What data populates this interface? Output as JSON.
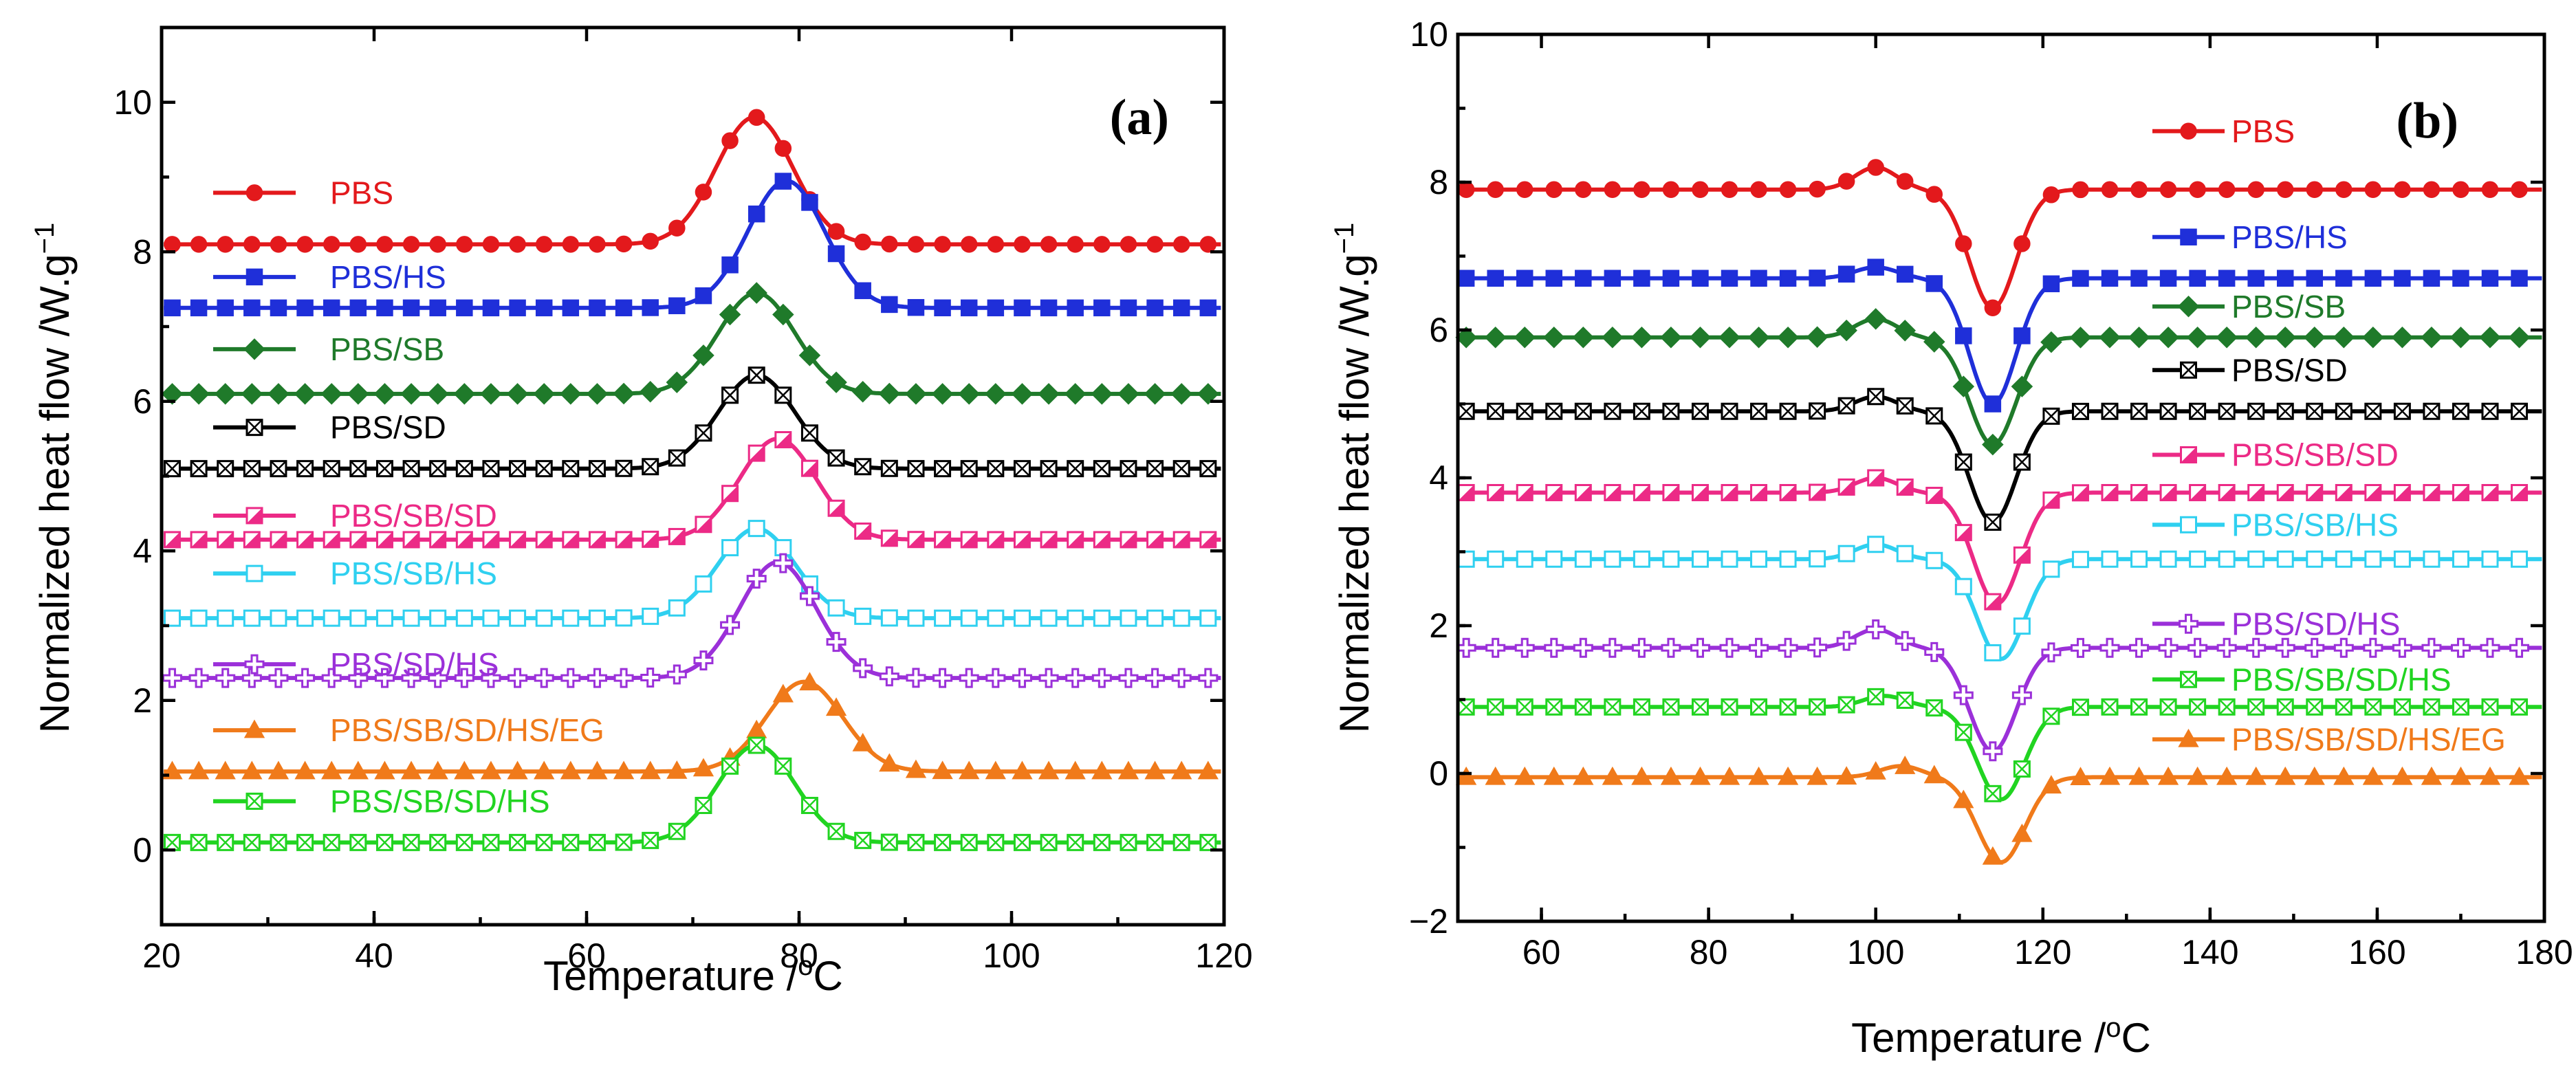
{
  "chart_data": [
    {
      "type": "line",
      "panel_label": "(a)",
      "xlabel": "Temperature /",
      "xlabel_sup": "o",
      "xlabel_suffix": "C",
      "ylabel": "Normalized heat flow /W.g",
      "ylabel_sup": "−1",
      "xlim": [
        20,
        120
      ],
      "ylim": [
        -1,
        11
      ],
      "xticks": [
        20,
        40,
        60,
        80,
        100,
        120
      ],
      "yticks": [
        0,
        2,
        4,
        6,
        8,
        10
      ],
      "legend_position": "left, stacked beside each curve",
      "series": [
        {
          "name": "PBS",
          "color": "#e3191c",
          "marker": "circle",
          "baseline": 8.1,
          "peaks": [
            {
              "x": 75.8,
              "h": 1.7,
              "w": 3.6
            }
          ]
        },
        {
          "name": "PBS/HS",
          "color": "#1f2fd9",
          "marker": "square",
          "baseline": 7.25,
          "peaks": [
            {
              "x": 78.8,
              "h": 1.7,
              "w": 3.6
            }
          ]
        },
        {
          "name": "PBS/SB",
          "color": "#1f7a2a",
          "marker": "diamond",
          "baseline": 6.1,
          "peaks": [
            {
              "x": 76.0,
              "h": 1.35,
              "w": 3.6
            }
          ]
        },
        {
          "name": "PBS/SD",
          "color": "#000000",
          "marker": "crossed-square",
          "baseline": 5.1,
          "peaks": [
            {
              "x": 76.0,
              "h": 1.25,
              "w": 3.6
            }
          ]
        },
        {
          "name": "PBS/SB/SD",
          "color": "#ec2a86",
          "marker": "half-square",
          "baseline": 4.15,
          "peaks": [
            {
              "x": 78.0,
              "h": 1.35,
              "w": 3.6
            }
          ]
        },
        {
          "name": "PBS/SB/HS",
          "color": "#2fd0f0",
          "marker": "open-square",
          "baseline": 3.1,
          "peaks": [
            {
              "x": 76.0,
              "h": 1.2,
              "w": 3.6
            }
          ]
        },
        {
          "name": "PBS/SD/HS",
          "color": "#9b30d9",
          "marker": "plus-square",
          "baseline": 2.3,
          "peaks": [
            {
              "x": 78.0,
              "h": 1.55,
              "w": 3.6
            }
          ]
        },
        {
          "name": "PBS/SB/SD/HS/EG",
          "color": "#f07a1a",
          "marker": "triangle",
          "baseline": 1.05,
          "peaks": [
            {
              "x": 80.5,
              "h": 1.2,
              "w": 3.6
            }
          ]
        },
        {
          "name": "PBS/SB/SD/HS",
          "color": "#21d421",
          "marker": "crossed-open-square",
          "baseline": 0.1,
          "peaks": [
            {
              "x": 76.0,
              "h": 1.3,
              "w": 3.6
            }
          ]
        }
      ]
    },
    {
      "type": "line",
      "panel_label": "(b)",
      "xlabel": "Temperature /",
      "xlabel_sup": "o",
      "xlabel_suffix": "C",
      "ylabel": "Normalized heat flow /W.g",
      "ylabel_sup": "−1",
      "xlim": [
        50,
        180
      ],
      "ylim": [
        -2,
        10
      ],
      "xticks": [
        60,
        80,
        100,
        120,
        140,
        160,
        180
      ],
      "yticks": [
        -2,
        0,
        2,
        4,
        6,
        8,
        10
      ],
      "legend_position": "right, stacked beside each curve",
      "series": [
        {
          "name": "PBS",
          "color": "#e3191c",
          "marker": "circle",
          "baseline": 7.9,
          "peaks": [
            {
              "x": 100,
              "h": 0.3,
              "w": 2.5
            },
            {
              "x": 114,
              "h": -1.6,
              "w": 2.8
            }
          ]
        },
        {
          "name": "PBS/HS",
          "color": "#1f2fd9",
          "marker": "square",
          "baseline": 6.7,
          "peaks": [
            {
              "x": 100,
              "h": 0.15,
              "w": 2.5
            },
            {
              "x": 114,
              "h": -1.7,
              "w": 2.8
            }
          ]
        },
        {
          "name": "PBS/SB",
          "color": "#1f7a2a",
          "marker": "diamond",
          "baseline": 5.9,
          "peaks": [
            {
              "x": 100,
              "h": 0.25,
              "w": 2.5
            },
            {
              "x": 114,
              "h": -1.45,
              "w": 2.8
            }
          ]
        },
        {
          "name": "PBS/SD",
          "color": "#000000",
          "marker": "crossed-square",
          "baseline": 4.9,
          "peaks": [
            {
              "x": 100,
              "h": 0.2,
              "w": 2.5
            },
            {
              "x": 114,
              "h": -1.5,
              "w": 2.8
            }
          ]
        },
        {
          "name": "PBS/SB/SD",
          "color": "#ec2a86",
          "marker": "half-square",
          "baseline": 3.8,
          "peaks": [
            {
              "x": 100,
              "h": 0.2,
              "w": 2.5
            },
            {
              "x": 114.5,
              "h": -1.5,
              "w": 2.8
            }
          ]
        },
        {
          "name": "PBS/SB/HS",
          "color": "#2fd0f0",
          "marker": "open-square",
          "baseline": 2.9,
          "peaks": [
            {
              "x": 100,
              "h": 0.2,
              "w": 2.5
            },
            {
              "x": 115,
              "h": -1.35,
              "w": 2.8
            }
          ]
        },
        {
          "name": "PBS/SD/HS",
          "color": "#9b30d9",
          "marker": "plus-square",
          "baseline": 1.7,
          "peaks": [
            {
              "x": 100,
              "h": 0.25,
              "w": 2.5
            },
            {
              "x": 114,
              "h": -1.4,
              "w": 2.8
            }
          ]
        },
        {
          "name": "PBS/SB/SD/HS",
          "color": "#21d421",
          "marker": "crossed-open-square",
          "baseline": 0.9,
          "peaks": [
            {
              "x": 101,
              "h": 0.15,
              "w": 2.5
            },
            {
              "x": 115,
              "h": -1.25,
              "w": 2.8
            }
          ]
        },
        {
          "name": "PBS/SB/SD/HS/EG",
          "color": "#f07a1a",
          "marker": "triangle",
          "baseline": -0.05,
          "peaks": [
            {
              "x": 103,
              "h": 0.15,
              "w": 2.5
            },
            {
              "x": 115,
              "h": -1.15,
              "w": 2.8
            }
          ]
        }
      ]
    }
  ]
}
